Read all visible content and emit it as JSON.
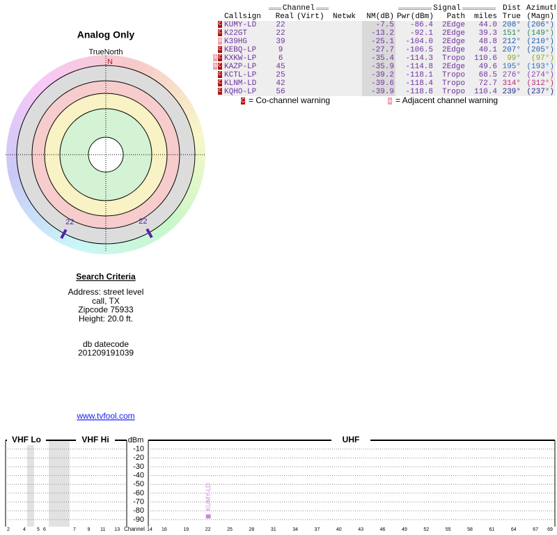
{
  "polar": {
    "title": "Analog Only",
    "north_label": "TrueNorth",
    "north": "N",
    "marks": [
      {
        "label": "22",
        "azimuth": 208,
        "color": "#5522aa"
      },
      {
        "label": "22",
        "azimuth": 151,
        "color": "#5522aa"
      }
    ]
  },
  "table": {
    "group_headers": [
      "Channel",
      "Signal",
      "Dist",
      "Azimuth"
    ],
    "headers": [
      "Callsign",
      "Real",
      "(Virt)",
      "Netwk",
      "NM(dB)",
      "Pwr(dBm)",
      "Path",
      "miles",
      "True",
      "(Magn)"
    ],
    "rows": [
      {
        "warnings": [
          "C"
        ],
        "callsign": "KUMY-LD",
        "real": "22",
        "nm": "-7.5",
        "pwr": "-86.4",
        "path": "2Edge",
        "miles": "44.0",
        "true": "208°",
        "magn": "(206°)",
        "azimuth_color": "#1f5fb0"
      },
      {
        "warnings": [
          "C"
        ],
        "callsign": "K22GT",
        "real": "22",
        "nm": "-13.2",
        "pwr": "-92.1",
        "path": "2Edge",
        "miles": "39.3",
        "true": "151°",
        "magn": "(149°)",
        "azimuth_color": "#2a8a5a"
      },
      {
        "warnings": [
          "a"
        ],
        "callsign": "K39HG",
        "real": "39",
        "nm": "-25.1",
        "pwr": "-104.0",
        "path": "2Edge",
        "miles": "48.8",
        "true": "212°",
        "magn": "(210°)",
        "azimuth_color": "#1f5fb0"
      },
      {
        "warnings": [
          "C"
        ],
        "callsign": "KEBQ-LP",
        "real": "9",
        "nm": "-27.7",
        "pwr": "-106.5",
        "path": "2Edge",
        "miles": "40.1",
        "true": "207°",
        "magn": "(205°)",
        "azimuth_color": "#1f5fb0"
      },
      {
        "warnings": [
          "a",
          "C"
        ],
        "callsign": "KXKW-LP",
        "real": "6",
        "nm": "-35.4",
        "pwr": "-114.3",
        "path": "Tropo",
        "miles": "110.6",
        "true": "99°",
        "magn": "(97°)",
        "azimuth_color": "#8aa818"
      },
      {
        "warnings": [
          "a",
          "C"
        ],
        "callsign": "KAZP-LP",
        "real": "45",
        "nm": "-35.9",
        "pwr": "-114.8",
        "path": "2Edge",
        "miles": "49.6",
        "true": "195°",
        "magn": "(193°)",
        "azimuth_color": "#3a6ac0"
      },
      {
        "warnings": [
          "C"
        ],
        "callsign": "KCTL-LP",
        "real": "25",
        "nm": "-39.2",
        "pwr": "-118.1",
        "path": "Tropo",
        "miles": "68.5",
        "true": "276°",
        "magn": "(274°)",
        "azimuth_color": "#9040a8"
      },
      {
        "warnings": [
          "C"
        ],
        "callsign": "KLNM-LD",
        "real": "42",
        "nm": "-39.6",
        "pwr": "-118.4",
        "path": "Tropo",
        "miles": "72.7",
        "true": "314°",
        "magn": "(312°)",
        "azimuth_color": "#c02870"
      },
      {
        "warnings": [
          "C"
        ],
        "callsign": "KQHO-LP",
        "real": "56",
        "nm": "-39.9",
        "pwr": "-118.8",
        "path": "Tropo",
        "miles": "110.4",
        "true": "239°",
        "magn": "(237°)",
        "azimuth_color": "#282890"
      }
    ]
  },
  "legend": [
    {
      "badge": "C",
      "text": "= Co-channel warning"
    },
    {
      "badge": "a",
      "text": "= Adjacent channel warning"
    }
  ],
  "search": {
    "heading": "Search Criteria",
    "lines": [
      "Address: street level",
      "call, TX",
      "Zipcode 75933",
      "Height: 20.0 ft."
    ],
    "db_lines": [
      "db datecode",
      "201209191039"
    ],
    "link": "www.tvfool.com"
  },
  "spectrum": {
    "bands": [
      "VHF Lo",
      "VHF Hi",
      "UHF"
    ],
    "y_label": "dBm",
    "x_label": "Channel",
    "ylim": [
      -98,
      0
    ],
    "yticks": [
      -10,
      -20,
      -30,
      -40,
      -50,
      -60,
      -70,
      -80,
      -90
    ],
    "vhf_channels": [
      2,
      4,
      5,
      6,
      7,
      9,
      11,
      13
    ],
    "uhf_channels": [
      14,
      16,
      19,
      22,
      25,
      28,
      31,
      34,
      37,
      40,
      43,
      46,
      49,
      52,
      55,
      58,
      61,
      64,
      67,
      69
    ],
    "stations": [
      {
        "label": "KUMY-LD",
        "channel": 22,
        "value": -86.4,
        "color": "#cc88dd"
      }
    ]
  }
}
